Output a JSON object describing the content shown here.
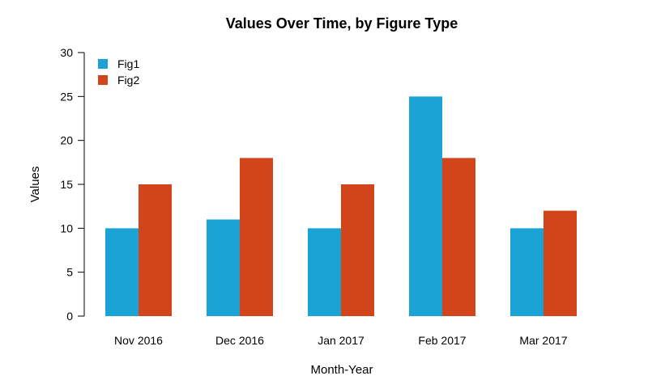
{
  "chart_data": {
    "type": "bar",
    "title": "Values Over Time, by Figure Type",
    "xlabel": "Month-Year",
    "ylabel": "Values",
    "categories": [
      "Nov 2016",
      "Dec 2016",
      "Jan 2017",
      "Feb 2017",
      "Mar 2017"
    ],
    "series": [
      {
        "name": "Fig1",
        "color": "#1BA3D6",
        "values": [
          10,
          11,
          10,
          25,
          10
        ]
      },
      {
        "name": "Fig2",
        "color": "#D2451B",
        "values": [
          15,
          18,
          15,
          18,
          12
        ]
      }
    ],
    "ylim": [
      0,
      30
    ],
    "yticks": [
      0,
      5,
      10,
      15,
      20,
      25,
      30
    ],
    "grid": false,
    "legend_position": "top-left"
  }
}
